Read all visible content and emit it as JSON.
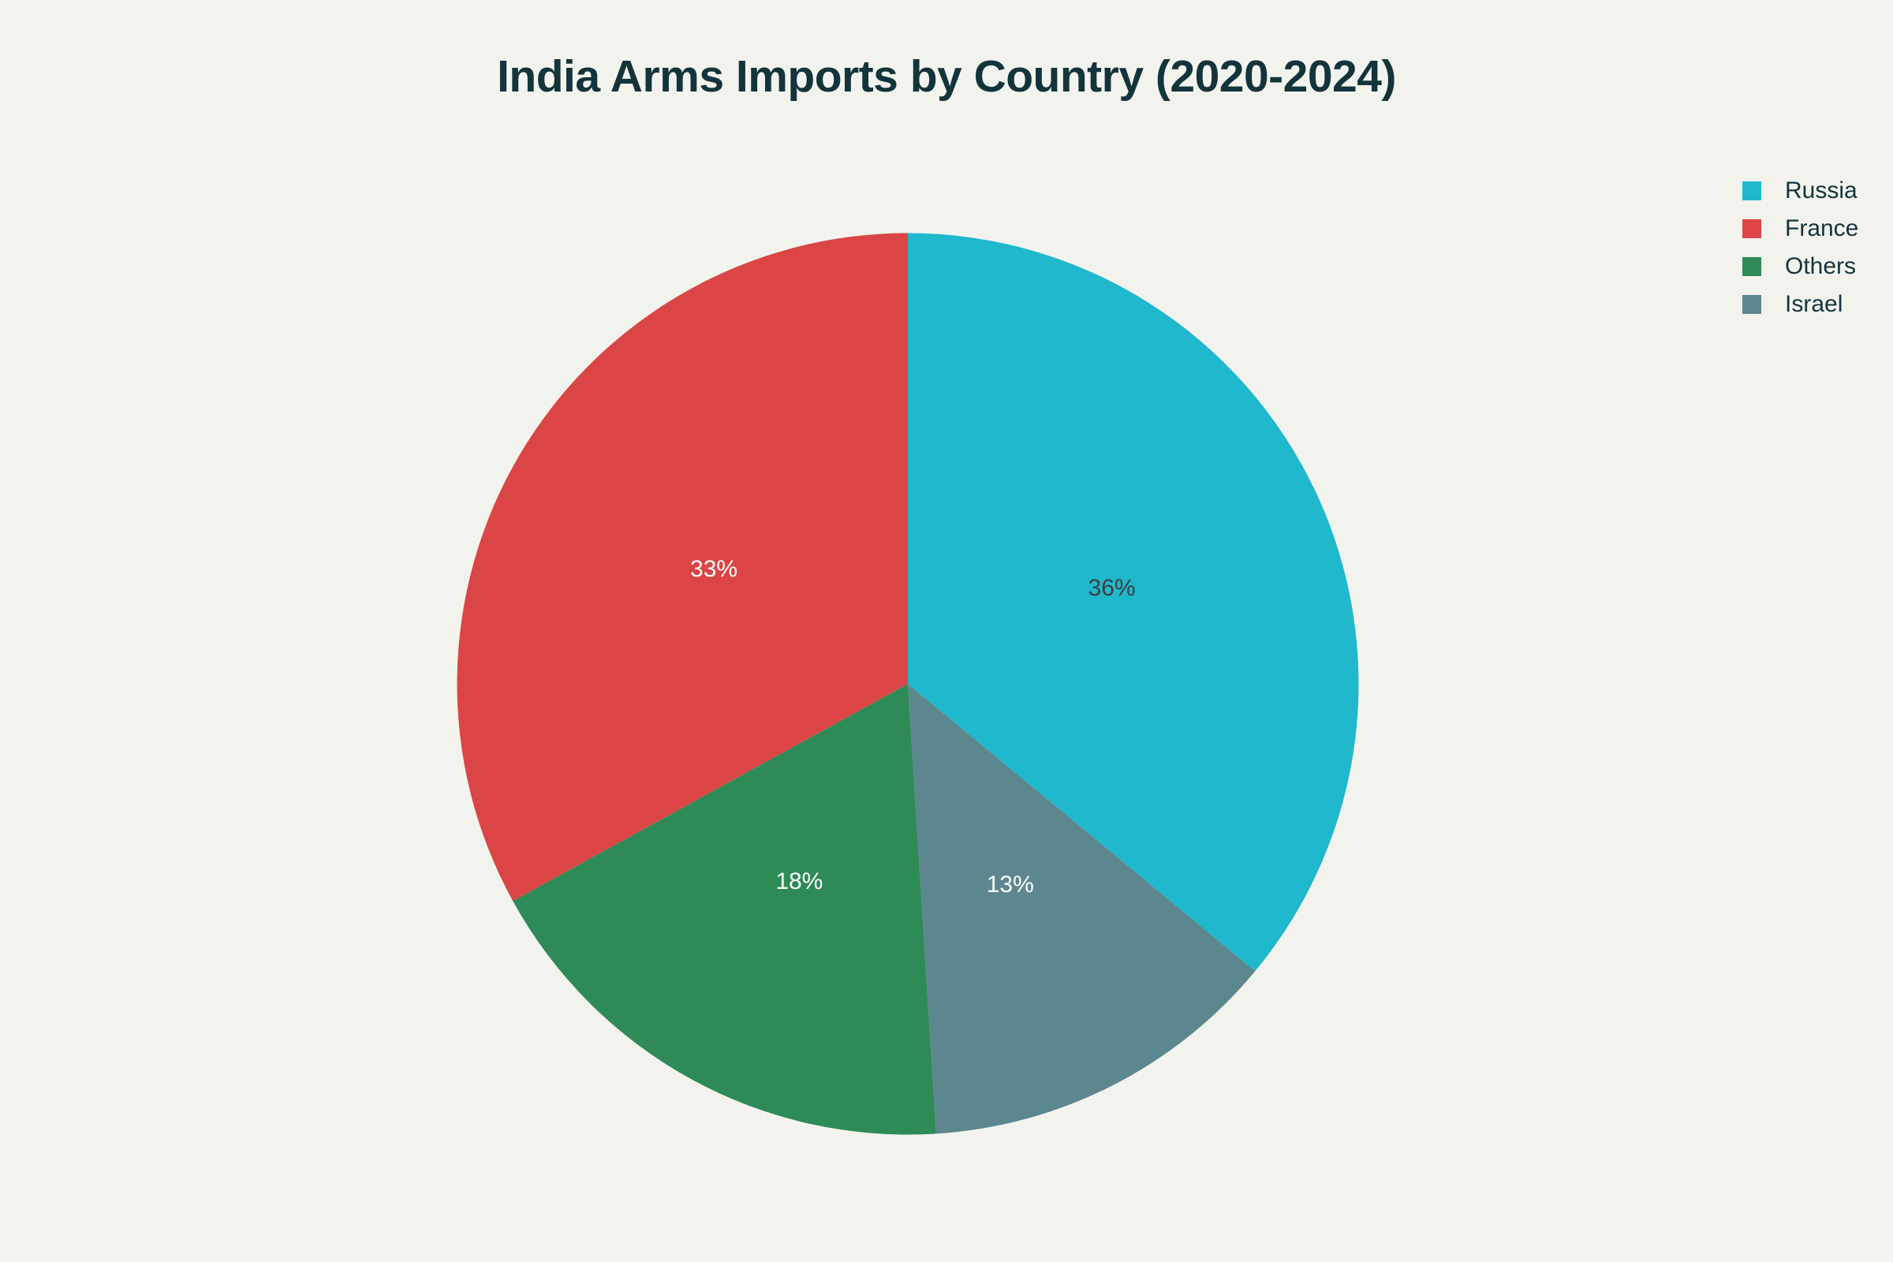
{
  "chart_data": {
    "type": "pie",
    "title": "India Arms Imports by Country (2020-2024)",
    "categories": [
      "Russia",
      "Israel",
      "Others",
      "France"
    ],
    "values": [
      36,
      13,
      18,
      33
    ],
    "labels": [
      "36%",
      "13%",
      "18%",
      "33%"
    ],
    "colors": [
      "#1FB8CD",
      "#5D878F",
      "#2E8B57",
      "#DB4545"
    ],
    "label_colors": [
      "#3D3D3D",
      "#FFFFFF",
      "#FFFFFF",
      "#FFFFFF"
    ],
    "direction": "clockwise",
    "start_angle": "12 o'clock",
    "legend": {
      "position": "top-right",
      "entries": [
        "Russia",
        "France",
        "Others",
        "Israel"
      ]
    },
    "xlabel": "",
    "ylabel": ""
  },
  "title": "India Arms Imports by Country (2020-2024)",
  "legend": {
    "items": [
      {
        "label": "Russia",
        "color": "#1FB8CD"
      },
      {
        "label": "France",
        "color": "#DB4545"
      },
      {
        "label": "Others",
        "color": "#2E8B57"
      },
      {
        "label": "Israel",
        "color": "#5D878F"
      }
    ]
  },
  "colors": {
    "background": "#F3F3EE",
    "text": "#13343B"
  }
}
